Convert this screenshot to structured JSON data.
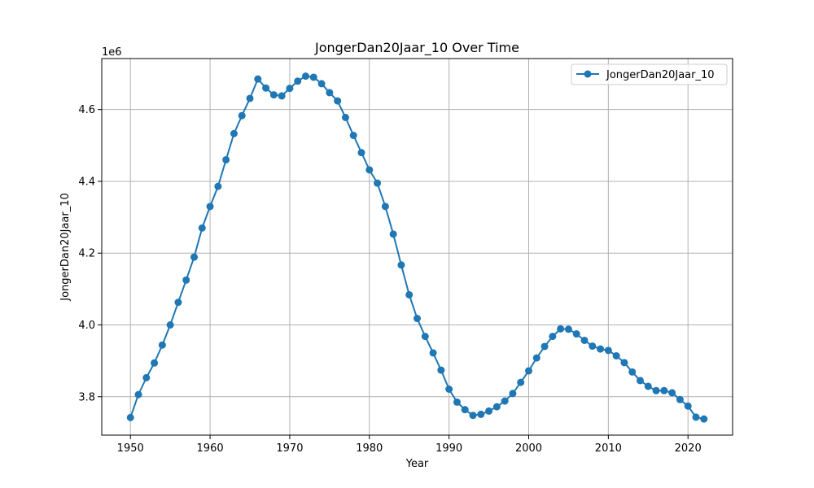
{
  "chart_data": {
    "type": "line",
    "title": "JongerDan20Jaar_10 Over Time",
    "xlabel": "Year",
    "ylabel": "JongerDan20Jaar_10",
    "y_offset_label": "1e6",
    "xlim": [
      1946.4,
      2025.6
    ],
    "ylim": [
      3.693,
      4.742
    ],
    "x_ticks": [
      1950,
      1960,
      1970,
      1980,
      1990,
      2000,
      2010,
      2020
    ],
    "y_ticks": [
      3.8,
      4.0,
      4.2,
      4.4,
      4.6
    ],
    "y_tick_labels": [
      "3.8",
      "4.0",
      "4.2",
      "4.4",
      "4.6"
    ],
    "grid": true,
    "legend_position": "top-right",
    "marker": "circle",
    "series": [
      {
        "name": "JongerDan20Jaar_10",
        "color": "#1f77b4",
        "x": [
          1950,
          1951,
          1952,
          1953,
          1954,
          1955,
          1956,
          1957,
          1958,
          1959,
          1960,
          1961,
          1962,
          1963,
          1964,
          1965,
          1966,
          1967,
          1968,
          1969,
          1970,
          1971,
          1972,
          1973,
          1974,
          1975,
          1976,
          1977,
          1978,
          1979,
          1980,
          1981,
          1982,
          1983,
          1984,
          1985,
          1986,
          1987,
          1988,
          1989,
          1990,
          1991,
          1992,
          1993,
          1994,
          1995,
          1996,
          1997,
          1998,
          1999,
          2000,
          2001,
          2002,
          2003,
          2004,
          2005,
          2006,
          2007,
          2008,
          2009,
          2010,
          2011,
          2012,
          2013,
          2014,
          2015,
          2016,
          2017,
          2018,
          2019,
          2020,
          2021,
          2022
        ],
        "values": [
          3.742,
          3.806,
          3.853,
          3.894,
          3.944,
          4.0,
          4.063,
          4.125,
          4.189,
          4.27,
          4.33,
          4.386,
          4.46,
          4.533,
          4.583,
          4.631,
          4.685,
          4.66,
          4.641,
          4.638,
          4.659,
          4.679,
          4.693,
          4.69,
          4.672,
          4.647,
          4.624,
          4.578,
          4.528,
          4.48,
          4.432,
          4.395,
          4.33,
          4.253,
          4.167,
          4.084,
          4.018,
          3.968,
          3.922,
          3.874,
          3.821,
          3.785,
          3.764,
          3.748,
          3.751,
          3.76,
          3.772,
          3.788,
          3.809,
          3.84,
          3.872,
          3.908,
          3.94,
          3.968,
          3.989,
          3.988,
          3.975,
          3.957,
          3.941,
          3.933,
          3.929,
          3.914,
          3.895,
          3.869,
          3.845,
          3.829,
          3.817,
          3.817,
          3.811,
          3.792,
          3.774,
          3.743,
          3.738
        ]
      }
    ]
  }
}
